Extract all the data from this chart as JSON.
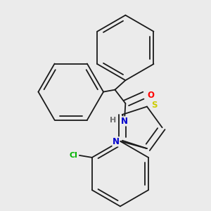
{
  "background_color": "#ebebeb",
  "line_color": "#1a1a1a",
  "bond_width": 1.3,
  "atoms": {
    "O": {
      "color": "#ff0000"
    },
    "N": {
      "color": "#0000cd"
    },
    "S": {
      "color": "#cccc00"
    },
    "Cl": {
      "color": "#00b400"
    },
    "H": {
      "color": "#6e6e6e"
    }
  },
  "figsize": [
    3.0,
    3.0
  ],
  "dpi": 100
}
